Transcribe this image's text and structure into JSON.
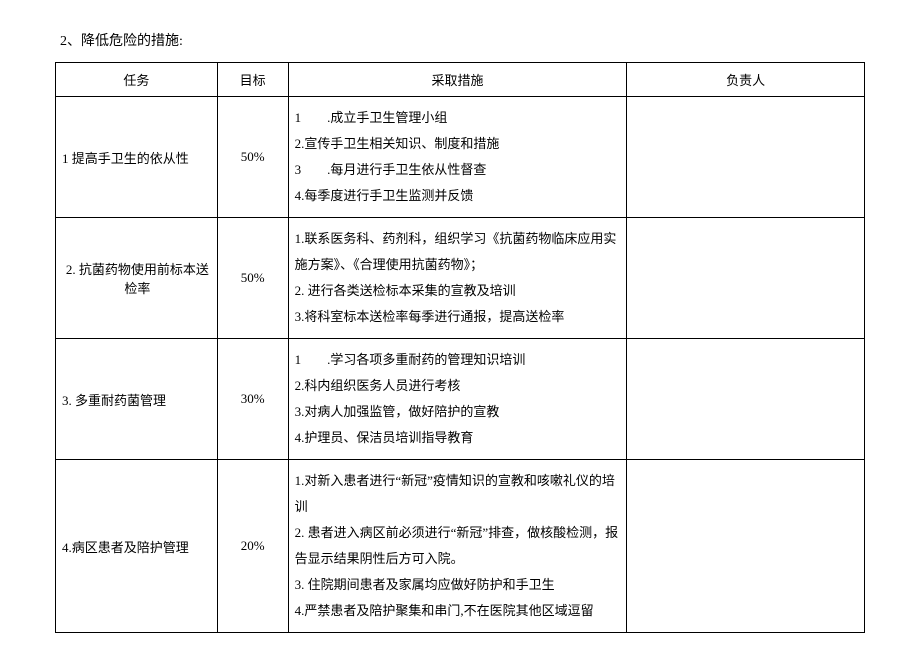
{
  "title": "2、降低危险的措施:",
  "table": {
    "headers": [
      "任务",
      "目标",
      "采取措施",
      "负责人"
    ],
    "rows": [
      {
        "task": "1 提高手卫生的依从性",
        "task_align": "left",
        "target": "50%",
        "measures": [
          "1　　.成立手卫生管理小组",
          "2.宣传手卫生相关知识、制度和措施",
          "3　　.每月进行手卫生依从性督查",
          "4.每季度进行手卫生监测并反馈"
        ],
        "owner": ""
      },
      {
        "task": "2. 抗菌药物使用前标本送检率",
        "task_align": "center",
        "target": "50%",
        "measures": [
          "1.联系医务科、药剂科，组织学习《抗菌药物临床应用实施方案》、《合理使用抗菌药物》；",
          "2. 进行各类送检标本采集的宣教及培训",
          "3.将科室标本送检率每季进行通报，提高送检率"
        ],
        "owner": ""
      },
      {
        "task": "3. 多重耐药菌管理",
        "task_align": "left",
        "target": "30%",
        "measures": [
          "1　　.学习各项多重耐药的管理知识培训",
          "2.科内组织医务人员进行考核",
          "3.对病人加强监管，做好陪护的宣教",
          "4.护理员、保洁员培训指导教育"
        ],
        "owner": ""
      },
      {
        "task": "4.病区患者及陪护管理",
        "task_align": "left",
        "target": "20%",
        "measures": [
          "1.对新入患者进行“新冠”疫情知识的宣教和咳嗽礼仪的培训",
          "2. 患者进入病区前必须进行“新冠”排查，做核酸检测，报告显示结果阴性后方可入院。",
          "3. 住院期间患者及家属均应做好防护和手卫生",
          "4.严禁患者及陪护聚集和串门,不在医院其他区域逗留"
        ],
        "owner": ""
      }
    ]
  }
}
